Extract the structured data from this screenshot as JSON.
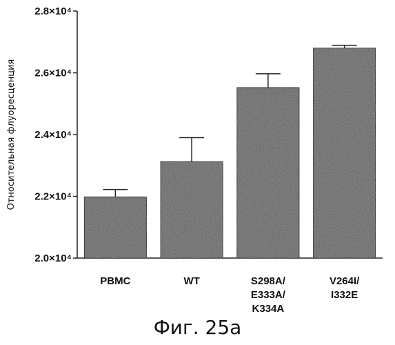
{
  "chart_data": {
    "type": "bar",
    "categories": [
      "PBMC",
      "WT",
      "S298A/\nE333A/\nK334A",
      "V264I/\nI332E"
    ],
    "values": [
      21980,
      23120,
      25520,
      26800
    ],
    "errors": [
      240,
      780,
      450,
      90
    ],
    "ylabel": "Относительная флуоресценция",
    "ylim": [
      20000,
      28000
    ],
    "y_ticks": [
      {
        "value": 20000,
        "label": "2.0×10⁴"
      },
      {
        "value": 22000,
        "label": "2.2×10⁴"
      },
      {
        "value": 24000,
        "label": "2.4×10⁴"
      },
      {
        "value": 26000,
        "label": "2.6×10⁴"
      },
      {
        "value": 28000,
        "label": "2.8×10⁴"
      }
    ],
    "bar_color": "#6a6a6a",
    "grid": false,
    "legend": "none"
  },
  "caption": "Фиг. 25а"
}
